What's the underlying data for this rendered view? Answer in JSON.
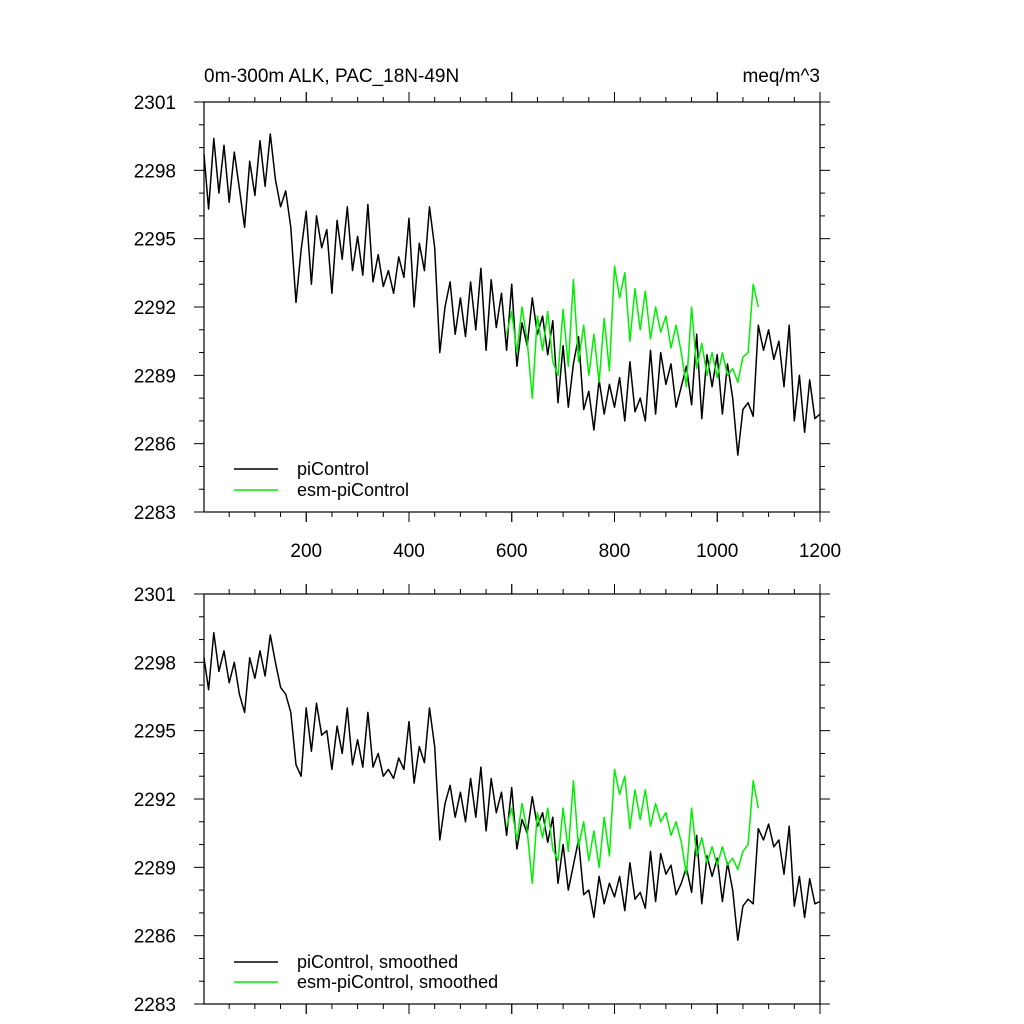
{
  "chart_data": [
    {
      "type": "line",
      "title": "0m-300m ALK, PAC_18N-49N",
      "units": "meq/m^3",
      "xlim": [
        1,
        1200
      ],
      "ylim": [
        2283,
        2301
      ],
      "x_ticks": [
        200,
        400,
        600,
        800,
        1000,
        1200
      ],
      "y_ticks": [
        2283,
        2286,
        2289,
        2292,
        2295,
        2298,
        2301
      ],
      "show_x_tick_labels": true,
      "legend_position": "bottom-left",
      "series": [
        {
          "name": "piControl",
          "color": "#000000",
          "x": [
            1,
            10,
            20,
            30,
            40,
            50,
            60,
            70,
            80,
            90,
            100,
            110,
            120,
            130,
            140,
            150,
            160,
            170,
            180,
            190,
            200,
            210,
            220,
            230,
            240,
            250,
            260,
            270,
            280,
            290,
            300,
            310,
            320,
            330,
            340,
            350,
            360,
            370,
            380,
            390,
            400,
            410,
            420,
            430,
            440,
            450,
            460,
            470,
            480,
            490,
            500,
            510,
            520,
            530,
            540,
            550,
            560,
            570,
            580,
            590,
            600,
            610,
            620,
            630,
            640,
            650,
            660,
            670,
            680,
            690,
            700,
            710,
            720,
            730,
            740,
            750,
            760,
            770,
            780,
            790,
            800,
            810,
            820,
            830,
            840,
            850,
            860,
            870,
            880,
            890,
            900,
            910,
            920,
            930,
            940,
            950,
            960,
            970,
            980,
            990,
            1000,
            1010,
            1020,
            1030,
            1040,
            1050,
            1060,
            1070,
            1080,
            1090,
            1100,
            1110,
            1120,
            1130,
            1140,
            1150,
            1160,
            1170,
            1180,
            1190,
            1200
          ],
          "values": [
            2298.7,
            2296.3,
            2299.4,
            2297.0,
            2299.1,
            2296.6,
            2298.8,
            2297.2,
            2295.5,
            2298.4,
            2296.9,
            2299.3,
            2297.3,
            2299.6,
            2297.6,
            2296.4,
            2297.1,
            2295.5,
            2292.2,
            2294.5,
            2296.2,
            2293.0,
            2296.0,
            2294.6,
            2295.4,
            2292.6,
            2295.8,
            2294.1,
            2296.4,
            2293.6,
            2295.1,
            2293.4,
            2296.5,
            2293.1,
            2294.3,
            2292.9,
            2293.6,
            2292.6,
            2294.2,
            2293.3,
            2295.9,
            2292.0,
            2294.8,
            2293.6,
            2296.4,
            2294.6,
            2290.0,
            2292.0,
            2293.1,
            2290.8,
            2292.4,
            2290.7,
            2293.1,
            2291.0,
            2293.7,
            2290.1,
            2293.2,
            2291.1,
            2292.6,
            2290.1,
            2293.0,
            2289.4,
            2291.3,
            2290.3,
            2292.4,
            2290.8,
            2291.6,
            2289.9,
            2291.4,
            2287.8,
            2290.3,
            2287.6,
            2289.5,
            2290.7,
            2287.5,
            2288.3,
            2286.6,
            2288.8,
            2287.3,
            2288.6,
            2287.6,
            2288.9,
            2287.0,
            2289.6,
            2287.4,
            2288.0,
            2287.0,
            2290.1,
            2287.3,
            2290.0,
            2288.6,
            2289.5,
            2287.6,
            2288.5,
            2289.4,
            2287.7,
            2290.8,
            2287.1,
            2289.9,
            2288.5,
            2289.9,
            2287.3,
            2289.5,
            2288.0,
            2285.5,
            2287.5,
            2287.8,
            2287.2,
            2291.2,
            2290.1,
            2291.0,
            2289.7,
            2290.5,
            2288.5,
            2291.2,
            2287.0,
            2289.0,
            2286.5,
            2288.8,
            2287.1,
            2287.3
          ]
        },
        {
          "name": "esm-piControl",
          "color": "#00ee00",
          "x": [
            590,
            600,
            610,
            620,
            630,
            640,
            650,
            660,
            670,
            680,
            690,
            700,
            710,
            720,
            730,
            740,
            750,
            760,
            770,
            780,
            790,
            800,
            810,
            820,
            830,
            840,
            850,
            860,
            870,
            880,
            890,
            900,
            910,
            920,
            930,
            940,
            950,
            960,
            970,
            980,
            990,
            1000,
            1010,
            1020,
            1030,
            1040,
            1050,
            1060,
            1070,
            1080
          ],
          "values": [
            2290.8,
            2291.8,
            2290.0,
            2292.0,
            2290.5,
            2288.0,
            2291.6,
            2290.1,
            2291.8,
            2289.6,
            2289.0,
            2291.9,
            2289.4,
            2293.2,
            2289.6,
            2291.2,
            2289.0,
            2290.8,
            2288.7,
            2291.5,
            2289.2,
            2293.8,
            2292.4,
            2293.5,
            2290.5,
            2292.8,
            2291.0,
            2292.7,
            2290.6,
            2292.0,
            2290.9,
            2291.6,
            2290.2,
            2291.2,
            2290.0,
            2288.5,
            2292.0,
            2289.3,
            2290.4,
            2289.0,
            2290.0,
            2288.9,
            2290.0,
            2289.0,
            2289.3,
            2288.7,
            2289.8,
            2290.0,
            2293.0,
            2292.0
          ]
        }
      ]
    },
    {
      "type": "line",
      "title": "",
      "units": "",
      "xlim": [
        1,
        1200
      ],
      "ylim": [
        2283,
        2301
      ],
      "x_ticks": [
        200,
        400,
        600,
        800,
        1000,
        1200
      ],
      "y_ticks": [
        2283,
        2286,
        2289,
        2292,
        2295,
        2298,
        2301
      ],
      "show_x_tick_labels": false,
      "legend_position": "bottom-left",
      "series": [
        {
          "name": "piControl, smoothed",
          "color": "#000000",
          "x": [
            1,
            10,
            20,
            30,
            40,
            50,
            60,
            70,
            80,
            90,
            100,
            110,
            120,
            130,
            140,
            150,
            160,
            170,
            180,
            190,
            200,
            210,
            220,
            230,
            240,
            250,
            260,
            270,
            280,
            290,
            300,
            310,
            320,
            330,
            340,
            350,
            360,
            370,
            380,
            390,
            400,
            410,
            420,
            430,
            440,
            450,
            460,
            470,
            480,
            490,
            500,
            510,
            520,
            530,
            540,
            550,
            560,
            570,
            580,
            590,
            600,
            610,
            620,
            630,
            640,
            650,
            660,
            670,
            680,
            690,
            700,
            710,
            720,
            730,
            740,
            750,
            760,
            770,
            780,
            790,
            800,
            810,
            820,
            830,
            840,
            850,
            860,
            870,
            880,
            890,
            900,
            910,
            920,
            930,
            940,
            950,
            960,
            970,
            980,
            990,
            1000,
            1010,
            1020,
            1030,
            1040,
            1050,
            1060,
            1070,
            1080,
            1090,
            1100,
            1110,
            1120,
            1130,
            1140,
            1150,
            1160,
            1170,
            1180,
            1190,
            1200
          ],
          "values": [
            2298.2,
            2296.8,
            2299.3,
            2297.6,
            2298.5,
            2297.1,
            2298.0,
            2296.6,
            2295.8,
            2298.2,
            2297.3,
            2298.5,
            2297.4,
            2299.2,
            2298.0,
            2296.9,
            2296.6,
            2295.8,
            2293.5,
            2293.0,
            2296.0,
            2294.1,
            2296.2,
            2294.8,
            2295.0,
            2293.3,
            2295.2,
            2294.0,
            2296.0,
            2293.5,
            2294.6,
            2293.4,
            2295.8,
            2293.4,
            2294.0,
            2293.0,
            2293.3,
            2292.9,
            2293.8,
            2293.3,
            2295.4,
            2292.7,
            2294.3,
            2293.6,
            2296.0,
            2294.3,
            2290.2,
            2291.8,
            2292.6,
            2291.2,
            2292.3,
            2291.0,
            2292.9,
            2291.2,
            2293.4,
            2290.6,
            2292.9,
            2291.4,
            2292.3,
            2290.4,
            2292.5,
            2289.8,
            2291.1,
            2290.5,
            2292.1,
            2290.8,
            2291.4,
            2290.1,
            2291.2,
            2288.3,
            2290.0,
            2288.0,
            2289.1,
            2290.2,
            2287.8,
            2288.0,
            2286.8,
            2288.6,
            2287.4,
            2288.3,
            2287.7,
            2288.6,
            2287.1,
            2289.2,
            2287.6,
            2287.9,
            2287.2,
            2289.7,
            2287.5,
            2289.6,
            2288.7,
            2289.1,
            2287.8,
            2288.3,
            2289.0,
            2287.9,
            2290.4,
            2287.4,
            2289.5,
            2288.6,
            2289.4,
            2287.5,
            2289.2,
            2288.0,
            2285.8,
            2287.3,
            2287.6,
            2287.4,
            2290.7,
            2290.2,
            2290.9,
            2289.9,
            2290.2,
            2288.7,
            2290.8,
            2287.3,
            2288.6,
            2286.8,
            2288.5,
            2287.4,
            2287.5
          ]
        },
        {
          "name": "esm-piControl, smoothed",
          "color": "#00ee00",
          "x": [
            590,
            600,
            610,
            620,
            630,
            640,
            650,
            660,
            670,
            680,
            690,
            700,
            710,
            720,
            730,
            740,
            750,
            760,
            770,
            780,
            790,
            800,
            810,
            820,
            830,
            840,
            850,
            860,
            870,
            880,
            890,
            900,
            910,
            920,
            930,
            940,
            950,
            960,
            970,
            980,
            990,
            1000,
            1010,
            1020,
            1030,
            1040,
            1050,
            1060,
            1070,
            1080
          ],
          "values": [
            2290.8,
            2291.6,
            2290.2,
            2291.8,
            2290.6,
            2288.3,
            2291.4,
            2290.3,
            2291.6,
            2289.8,
            2289.3,
            2291.6,
            2289.7,
            2292.8,
            2289.9,
            2291.0,
            2289.3,
            2290.6,
            2289.0,
            2291.2,
            2289.5,
            2293.3,
            2292.2,
            2293.0,
            2290.7,
            2292.4,
            2291.1,
            2292.4,
            2290.8,
            2291.8,
            2291.0,
            2291.4,
            2290.4,
            2291.0,
            2290.1,
            2288.7,
            2291.6,
            2289.5,
            2290.3,
            2289.2,
            2289.9,
            2289.1,
            2289.9,
            2289.1,
            2289.4,
            2288.9,
            2289.7,
            2290.0,
            2292.8,
            2291.6
          ]
        }
      ]
    }
  ]
}
